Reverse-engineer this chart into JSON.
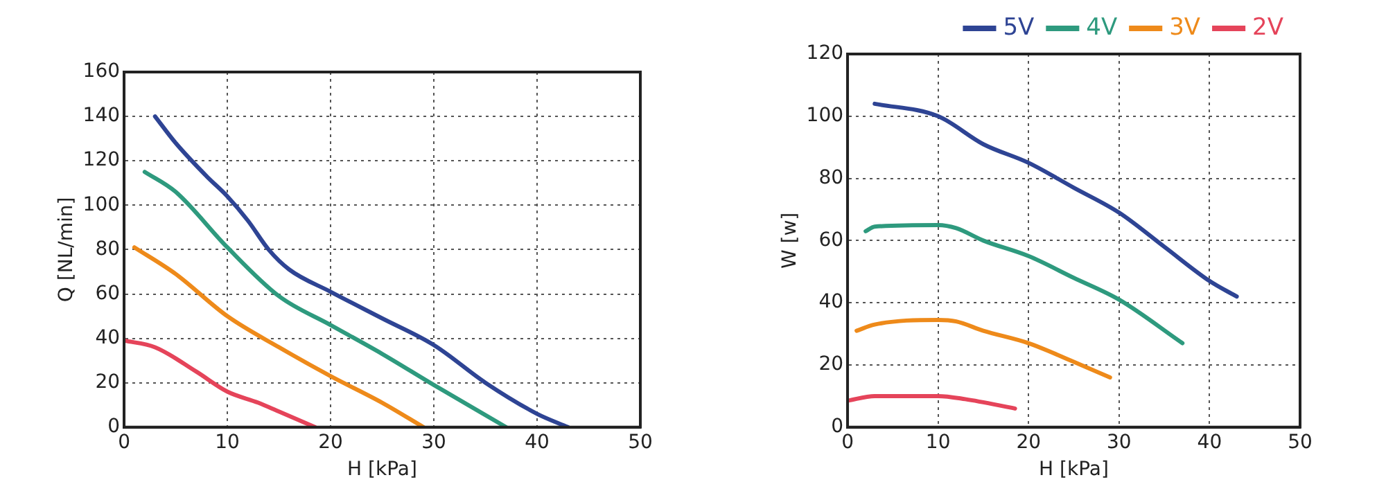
{
  "chart_data": [
    {
      "type": "line",
      "xlabel": "H [kPa]",
      "ylabel": "Q [NL/min]",
      "xlim": [
        0,
        50
      ],
      "xticks": [
        0,
        10,
        20,
        30,
        40,
        50
      ],
      "ylim": [
        0,
        160
      ],
      "yticks": [
        0,
        20,
        40,
        60,
        80,
        100,
        120,
        140,
        160
      ],
      "grid": true,
      "legend": false,
      "marker": "none",
      "line_style": "solid",
      "series": [
        {
          "color": "#2e4494",
          "x": [
            3,
            5,
            8,
            10,
            12,
            14,
            16,
            20,
            25,
            30,
            35,
            40,
            43
          ],
          "values": [
            140,
            128,
            113,
            104,
            93,
            80,
            71,
            61,
            49,
            37,
            20,
            6,
            0
          ]
        },
        {
          "color": "#2e9a7e",
          "x": [
            2,
            5,
            10,
            15,
            20,
            25,
            30,
            37
          ],
          "values": [
            115,
            106,
            81,
            59,
            46,
            33,
            19,
            0
          ]
        },
        {
          "color": "#ee8a1a",
          "x": [
            1,
            5,
            10,
            15,
            20,
            25,
            29
          ],
          "values": [
            81,
            69,
            50,
            36,
            23,
            11,
            0
          ]
        },
        {
          "color": "#e5445a",
          "x": [
            0,
            3,
            7,
            10,
            13,
            15,
            18.5
          ],
          "values": [
            39,
            36,
            25,
            16,
            11,
            7,
            0
          ]
        }
      ]
    },
    {
      "type": "line",
      "xlabel": "H [kPa]",
      "ylabel": "W [w]",
      "xlim": [
        0,
        50
      ],
      "xticks": [
        0,
        10,
        20,
        30,
        40,
        50
      ],
      "ylim": [
        0,
        120
      ],
      "yticks": [
        0,
        20,
        40,
        60,
        80,
        100,
        120
      ],
      "grid": true,
      "legend": "top right",
      "marker": "none",
      "line_style": "solid",
      "series": [
        {
          "name": "5V",
          "color": "#2e4494",
          "x": [
            3,
            10,
            15,
            20,
            25,
            30,
            35,
            40,
            43
          ],
          "values": [
            104,
            100,
            91,
            85,
            77,
            69,
            58,
            47,
            42
          ]
        },
        {
          "name": "4V",
          "color": "#2e9a7e",
          "x": [
            2,
            3,
            10,
            12,
            15,
            20,
            25,
            30,
            37
          ],
          "values": [
            63,
            64.5,
            65,
            64,
            60,
            55,
            48,
            41,
            27
          ]
        },
        {
          "name": "3V",
          "color": "#ee8a1a",
          "x": [
            1,
            3,
            10,
            12,
            15,
            20,
            25,
            29
          ],
          "values": [
            31,
            33,
            34.5,
            34,
            31,
            27,
            21,
            16
          ]
        },
        {
          "name": "2V",
          "color": "#e5445a",
          "x": [
            0,
            3,
            10,
            13,
            18.5
          ],
          "values": [
            8.5,
            10,
            10,
            9,
            6
          ]
        }
      ]
    }
  ]
}
